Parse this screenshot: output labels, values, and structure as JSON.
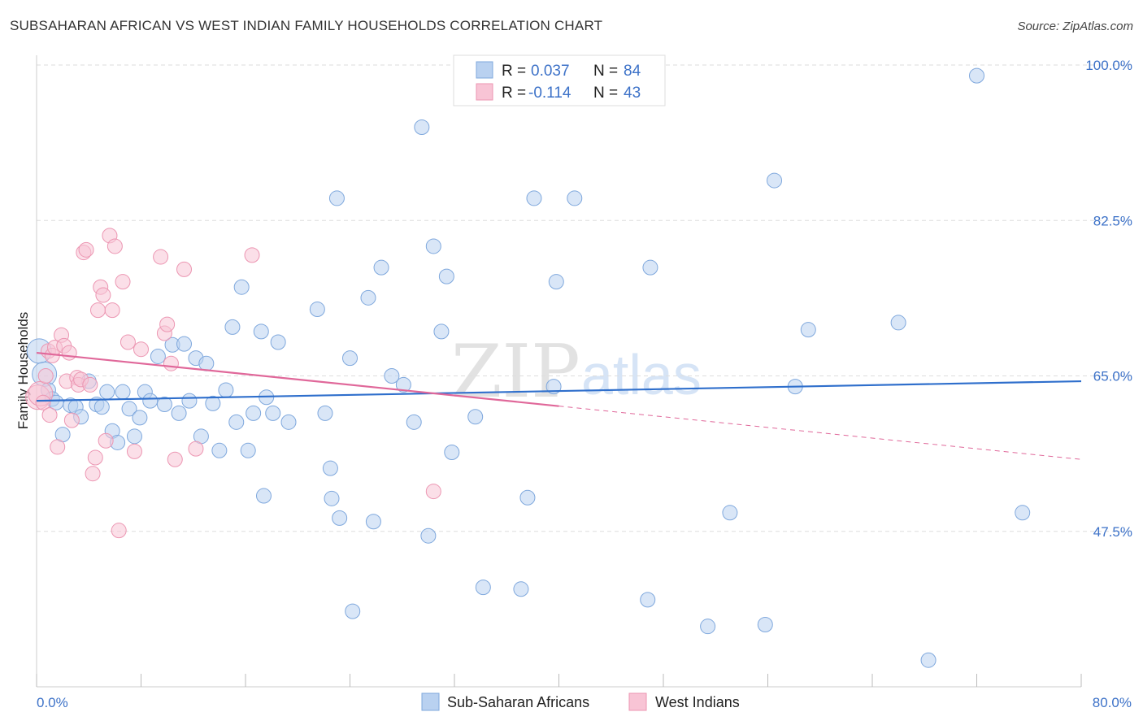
{
  "title": "SUBSAHARAN AFRICAN VS WEST INDIAN FAMILY HOUSEHOLDS CORRELATION CHART",
  "source": "Source: ZipAtlas.com",
  "watermark": {
    "zip": "ZIP",
    "atlas": "atlas"
  },
  "legend": {
    "r_label": "R =",
    "n_label": "N =",
    "rows": [
      {
        "r": "0.037",
        "n": "84"
      },
      {
        "r": "-0.114",
        "n": "43"
      }
    ]
  },
  "colors": {
    "blue_fill": "#b9d1f0",
    "blue_stroke": "#7fa8dd",
    "blue_line": "#2f6fcc",
    "pink_fill": "#f8c4d5",
    "pink_stroke": "#ec96b2",
    "pink_line": "#e0689a",
    "tick_text": "#3d72c8"
  },
  "chart_data": {
    "type": "scatter",
    "title": "SUBSAHARAN AFRICAN VS WEST INDIAN FAMILY HOUSEHOLDS CORRELATION CHART",
    "xlabel": "",
    "ylabel": "Family Households",
    "xlim": [
      0,
      80
    ],
    "ylim": [
      30,
      100
    ],
    "x_tick_labels": [
      "0.0%",
      "80.0%"
    ],
    "y_ticks": [
      47.5,
      65.0,
      82.5,
      100.0
    ],
    "y_tick_labels": [
      "47.5%",
      "65.0%",
      "82.5%",
      "100.0%"
    ],
    "grid": true,
    "legend_position": "top-center",
    "series": [
      {
        "name": "Sub-Saharan Africans",
        "color": "#b9d1f0",
        "trend": {
          "x": [
            0,
            80
          ],
          "y": [
            62.2,
            64.4
          ]
        },
        "points": [
          [
            0.2,
            67.8
          ],
          [
            0.6,
            65.2
          ],
          [
            0.9,
            63.4
          ],
          [
            1.2,
            62.4
          ],
          [
            1.5,
            62.0
          ],
          [
            2.0,
            58.4
          ],
          [
            2.6,
            61.7
          ],
          [
            3.0,
            61.5
          ],
          [
            3.4,
            60.4
          ],
          [
            4.0,
            64.4
          ],
          [
            4.6,
            61.8
          ],
          [
            5.0,
            61.5
          ],
          [
            5.4,
            63.2
          ],
          [
            5.8,
            58.8
          ],
          [
            6.2,
            57.5
          ],
          [
            6.6,
            63.2
          ],
          [
            7.1,
            61.3
          ],
          [
            7.5,
            58.2
          ],
          [
            7.9,
            60.3
          ],
          [
            8.3,
            63.2
          ],
          [
            8.7,
            62.2
          ],
          [
            9.3,
            67.2
          ],
          [
            9.8,
            61.8
          ],
          [
            10.4,
            68.5
          ],
          [
            10.9,
            60.8
          ],
          [
            11.3,
            68.6
          ],
          [
            11.7,
            62.2
          ],
          [
            12.2,
            67.0
          ],
          [
            12.6,
            58.2
          ],
          [
            13.0,
            66.4
          ],
          [
            13.5,
            61.9
          ],
          [
            14.0,
            56.6
          ],
          [
            14.5,
            63.4
          ],
          [
            15.0,
            70.5
          ],
          [
            15.3,
            59.8
          ],
          [
            15.7,
            75.0
          ],
          [
            16.2,
            56.6
          ],
          [
            16.6,
            60.8
          ],
          [
            17.2,
            70.0
          ],
          [
            17.6,
            62.6
          ],
          [
            18.1,
            60.8
          ],
          [
            18.5,
            68.8
          ],
          [
            19.3,
            59.8
          ],
          [
            21.5,
            72.5
          ],
          [
            22.1,
            60.8
          ],
          [
            22.5,
            54.6
          ],
          [
            23.0,
            85.0
          ],
          [
            23.2,
            49.0
          ],
          [
            24.0,
            67.0
          ],
          [
            24.2,
            38.5
          ],
          [
            25.4,
            73.8
          ],
          [
            25.8,
            48.6
          ],
          [
            26.4,
            77.2
          ],
          [
            27.2,
            65.0
          ],
          [
            28.1,
            64.0
          ],
          [
            28.9,
            59.8
          ],
          [
            29.5,
            93.0
          ],
          [
            30.0,
            47.0
          ],
          [
            30.4,
            79.6
          ],
          [
            31.0,
            70.0
          ],
          [
            31.4,
            76.2
          ],
          [
            31.8,
            56.4
          ],
          [
            33.6,
            60.4
          ],
          [
            37.1,
            41.0
          ],
          [
            38.1,
            85.0
          ],
          [
            39.6,
            63.8
          ],
          [
            39.8,
            75.6
          ],
          [
            41.2,
            85.0
          ],
          [
            46.8,
            39.8
          ],
          [
            47.0,
            77.2
          ],
          [
            51.4,
            36.8
          ],
          [
            53.1,
            49.6
          ],
          [
            56.5,
            87.0
          ],
          [
            58.1,
            63.8
          ],
          [
            59.1,
            70.2
          ],
          [
            66.0,
            71.0
          ],
          [
            68.3,
            33.0
          ],
          [
            72.0,
            98.8
          ],
          [
            75.5,
            49.6
          ],
          [
            55.8,
            37.0
          ],
          [
            34.2,
            41.2
          ],
          [
            37.6,
            51.3
          ],
          [
            22.6,
            51.2
          ],
          [
            17.4,
            51.5
          ]
        ]
      },
      {
        "name": "West Indians",
        "color": "#f8c4d5",
        "trend": {
          "x": [
            0,
            40
          ],
          "y": [
            67.6,
            61.6
          ]
        },
        "trend_dashed": {
          "x": [
            40,
            80
          ],
          "y": [
            61.6,
            55.6
          ]
        },
        "points": [
          [
            0.1,
            62.6
          ],
          [
            0.3,
            63.0
          ],
          [
            0.5,
            62.0
          ],
          [
            0.7,
            65.0
          ],
          [
            0.9,
            67.8
          ],
          [
            1.0,
            60.6
          ],
          [
            1.2,
            67.3
          ],
          [
            1.4,
            68.2
          ],
          [
            1.6,
            57.0
          ],
          [
            1.9,
            69.6
          ],
          [
            2.1,
            68.4
          ],
          [
            2.3,
            64.4
          ],
          [
            2.5,
            67.6
          ],
          [
            2.7,
            60.0
          ],
          [
            3.1,
            64.8
          ],
          [
            3.2,
            64.0
          ],
          [
            3.4,
            64.6
          ],
          [
            3.6,
            78.9
          ],
          [
            3.8,
            79.2
          ],
          [
            4.1,
            64.0
          ],
          [
            4.3,
            54.0
          ],
          [
            4.5,
            55.8
          ],
          [
            4.7,
            72.4
          ],
          [
            4.9,
            75.0
          ],
          [
            5.1,
            74.1
          ],
          [
            5.3,
            57.7
          ],
          [
            5.6,
            80.8
          ],
          [
            5.8,
            72.4
          ],
          [
            6.0,
            79.6
          ],
          [
            6.3,
            47.6
          ],
          [
            6.6,
            75.6
          ],
          [
            7.0,
            68.8
          ],
          [
            7.5,
            56.5
          ],
          [
            8.0,
            68.0
          ],
          [
            9.5,
            78.4
          ],
          [
            9.8,
            69.8
          ],
          [
            10.0,
            70.8
          ],
          [
            10.3,
            66.4
          ],
          [
            10.6,
            55.6
          ],
          [
            11.3,
            77.0
          ],
          [
            12.2,
            56.8
          ],
          [
            16.5,
            78.6
          ],
          [
            30.4,
            52.0
          ]
        ]
      }
    ]
  },
  "bottom_legend": [
    "Sub-Saharan Africans",
    "West Indians"
  ]
}
